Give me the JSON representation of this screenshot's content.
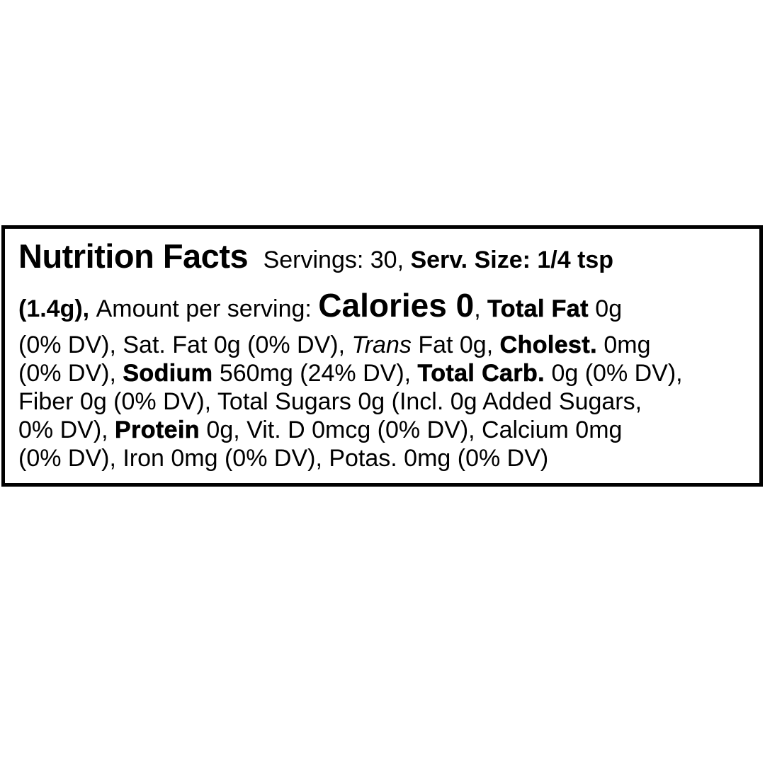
{
  "page": {
    "background_color": "#ffffff"
  },
  "label": {
    "border_color": "#000000",
    "text_color": "#000000",
    "lines": [
      {
        "segments": [
          {
            "name": "label-title",
            "style": "title",
            "text": "Nutrition Facts"
          },
          {
            "name": "servings-count",
            "style": "regular",
            "text": " Servings: 30, "
          },
          {
            "name": "serving-size",
            "style": "bold",
            "text": "Serv. Size: 1/4 tsp"
          }
        ]
      },
      {
        "segments": [
          {
            "name": "serving-size-grams",
            "style": "bold",
            "text": "(1.4g), "
          },
          {
            "name": "amount-per-serving",
            "style": "regular",
            "text": "Amount per serving: "
          },
          {
            "name": "calories",
            "style": "calories",
            "text": "Calories 0"
          },
          {
            "name": "comma-after-calories",
            "style": "regular",
            "text": ", "
          },
          {
            "name": "total-fat-name",
            "style": "heavy",
            "text": "Total Fat"
          },
          {
            "name": "total-fat-value",
            "style": "regular",
            "text": " 0g"
          }
        ]
      },
      {
        "segments": [
          {
            "name": "total-fat-dv-and-sat-fat",
            "style": "regular",
            "text": "(0% DV), Sat. Fat 0g (0% DV), "
          },
          {
            "name": "trans-word",
            "style": "italic",
            "text": "Trans"
          },
          {
            "name": "trans-fat-value",
            "style": "regular",
            "text": " Fat 0g, "
          },
          {
            "name": "cholesterol-name",
            "style": "heavy",
            "text": "Cholest."
          },
          {
            "name": "cholesterol-value",
            "style": "regular",
            "text": " 0mg"
          }
        ]
      },
      {
        "segments": [
          {
            "name": "cholesterol-dv",
            "style": "regular",
            "text": "(0% DV), "
          },
          {
            "name": "sodium-name",
            "style": "heavy",
            "text": "Sodium"
          },
          {
            "name": "sodium-value",
            "style": "regular",
            "text": " 560mg (24% DV), "
          },
          {
            "name": "total-carb-name",
            "style": "heavy",
            "text": "Total Carb."
          },
          {
            "name": "total-carb-value",
            "style": "regular",
            "text": " 0g (0% DV),"
          }
        ]
      },
      {
        "segments": [
          {
            "name": "fiber-and-sugars",
            "style": "regular",
            "text": "Fiber 0g (0% DV), Total Sugars 0g (Incl. 0g Added Sugars,"
          }
        ]
      },
      {
        "segments": [
          {
            "name": "added-sugars-dv",
            "style": "regular",
            "text": "0% DV), "
          },
          {
            "name": "protein-name",
            "style": "heavy",
            "text": "Protein"
          },
          {
            "name": "protein-vitd-calcium",
            "style": "regular",
            "text": " 0g, Vit. D 0mcg (0% DV), Calcium 0mg"
          }
        ]
      },
      {
        "segments": [
          {
            "name": "calcium-dv-iron-potassium",
            "style": "regular",
            "text": "(0% DV), Iron 0mg (0% DV), Potas. 0mg (0% DV)"
          }
        ]
      }
    ]
  }
}
